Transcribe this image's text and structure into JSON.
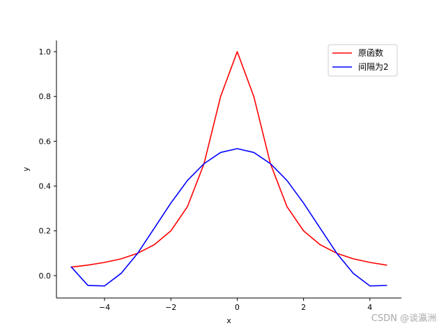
{
  "chart_data": {
    "type": "line",
    "xlabel": "x",
    "ylabel": "y",
    "xlim": [
      -5.45,
      4.95
    ],
    "ylim": [
      -0.1,
      1.05
    ],
    "xticks": [
      -4,
      -2,
      0,
      2,
      4
    ],
    "xtick_labels": [
      "−4",
      "−2",
      "0",
      "2",
      "4"
    ],
    "yticks": [
      0.0,
      0.2,
      0.4,
      0.6,
      0.8,
      1.0
    ],
    "ytick_labels": [
      "0.0",
      "0.2",
      "0.4",
      "0.6",
      "0.8",
      "1.0"
    ],
    "grid": false,
    "legend_position": "top-right",
    "spines": "left-bottom",
    "series": [
      {
        "name": "原函数",
        "color": "#ff0000",
        "x": [
          -5,
          -4.5,
          -4,
          -3.5,
          -3,
          -2.5,
          -2,
          -1.5,
          -1,
          -0.5,
          0,
          0.5,
          1,
          1.5,
          2,
          2.5,
          3,
          3.5,
          4,
          4.5
        ],
        "y": [
          0.038,
          0.047,
          0.059,
          0.075,
          0.1,
          0.138,
          0.2,
          0.308,
          0.5,
          0.8,
          1.0,
          0.8,
          0.5,
          0.308,
          0.2,
          0.138,
          0.1,
          0.075,
          0.059,
          0.047
        ]
      },
      {
        "name": "间隔为2",
        "color": "#0000ff",
        "x": [
          -5,
          -4.5,
          -4,
          -3.5,
          -3,
          -2.5,
          -2,
          -1.5,
          -1,
          -0.5,
          0,
          0.5,
          1,
          1.5,
          2,
          2.5,
          3,
          3.5,
          4,
          4.5
        ],
        "y": [
          0.038,
          -0.044,
          -0.046,
          0.01,
          0.1,
          0.212,
          0.324,
          0.425,
          0.5,
          0.55,
          0.567,
          0.55,
          0.5,
          0.425,
          0.324,
          0.212,
          0.1,
          0.01,
          -0.046,
          -0.044
        ]
      }
    ]
  },
  "watermark": "CSDN @谈瀛洲"
}
